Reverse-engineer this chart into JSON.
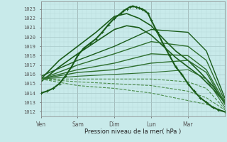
{
  "xlabel": "Pression niveau de la mer( hPa )",
  "bg_color": "#c8eaea",
  "grid_color_major": "#a8c8c8",
  "grid_color_minor": "#b8d8d8",
  "line_color_dark": "#1a5c1a",
  "line_color_light": "#2d6e2d",
  "line_color_faint": "#4a8c4a",
  "ylim": [
    1011.5,
    1023.8
  ],
  "yticks": [
    1012,
    1013,
    1014,
    1015,
    1016,
    1017,
    1018,
    1019,
    1020,
    1021,
    1022,
    1023
  ],
  "day_labels": [
    "Ven",
    "Sam",
    "Dim",
    "Lun",
    "Mar"
  ],
  "day_positions": [
    0,
    24,
    48,
    72,
    96
  ],
  "total_hours": 120,
  "lines": [
    {
      "x": [
        0,
        4,
        8,
        12,
        16,
        20,
        24,
        28,
        32,
        36,
        40,
        44,
        48,
        52,
        54,
        56,
        58,
        60,
        62,
        64,
        66,
        68,
        70,
        72,
        76,
        80,
        84,
        88,
        92,
        96,
        100,
        104,
        108,
        112,
        116,
        120
      ],
      "y": [
        1014.0,
        1014.2,
        1014.5,
        1015.0,
        1015.8,
        1016.8,
        1018.0,
        1018.8,
        1019.3,
        1019.8,
        1020.5,
        1021.3,
        1022.0,
        1022.5,
        1022.8,
        1023.0,
        1023.2,
        1023.3,
        1023.2,
        1023.1,
        1023.0,
        1022.8,
        1022.5,
        1021.8,
        1020.5,
        1019.2,
        1018.0,
        1016.8,
        1016.0,
        1015.0,
        1014.2,
        1013.5,
        1013.0,
        1012.5,
        1012.2,
        1012.0
      ],
      "lw": 1.5,
      "color": "dark",
      "marker": true
    },
    {
      "x": [
        0,
        12,
        24,
        36,
        48,
        56,
        64,
        72,
        80,
        88,
        96,
        104,
        112,
        120
      ],
      "y": [
        1015.5,
        1017.5,
        1019.0,
        1020.5,
        1022.2,
        1022.5,
        1022.0,
        1021.2,
        1019.8,
        1018.5,
        1017.5,
        1016.2,
        1014.8,
        1013.0
      ],
      "lw": 1.2,
      "color": "dark",
      "marker": false
    },
    {
      "x": [
        0,
        12,
        24,
        36,
        48,
        56,
        64,
        72,
        80,
        88,
        96,
        104,
        112,
        120
      ],
      "y": [
        1015.2,
        1016.8,
        1018.2,
        1019.5,
        1020.8,
        1021.2,
        1021.0,
        1020.2,
        1019.0,
        1017.8,
        1016.8,
        1015.8,
        1014.5,
        1013.0
      ],
      "lw": 1.2,
      "color": "dark",
      "marker": false
    },
    {
      "x": [
        0,
        24,
        48,
        72,
        96,
        108,
        120
      ],
      "y": [
        1015.8,
        1017.5,
        1019.0,
        1020.8,
        1020.5,
        1018.5,
        1013.5
      ],
      "lw": 1.0,
      "color": "dark",
      "marker": false
    },
    {
      "x": [
        0,
        24,
        48,
        72,
        96,
        108,
        120
      ],
      "y": [
        1015.5,
        1017.0,
        1018.2,
        1019.5,
        1019.0,
        1017.5,
        1013.2
      ],
      "lw": 1.0,
      "color": "light",
      "marker": false
    },
    {
      "x": [
        0,
        24,
        48,
        72,
        96,
        108,
        120
      ],
      "y": [
        1015.5,
        1016.5,
        1017.2,
        1018.2,
        1018.0,
        1016.5,
        1013.0
      ],
      "lw": 1.0,
      "color": "light",
      "marker": false
    },
    {
      "x": [
        0,
        24,
        48,
        72,
        96,
        108,
        120
      ],
      "y": [
        1015.5,
        1016.2,
        1016.5,
        1017.2,
        1017.5,
        1016.2,
        1012.8
      ],
      "lw": 1.0,
      "color": "light",
      "marker": false
    },
    {
      "x": [
        0,
        24,
        48,
        72,
        96,
        108,
        120
      ],
      "y": [
        1015.5,
        1015.8,
        1016.0,
        1016.2,
        1016.5,
        1015.5,
        1012.5
      ],
      "lw": 0.8,
      "color": "light",
      "marker": false
    },
    {
      "x": [
        0,
        24,
        48,
        72,
        96,
        108,
        120
      ],
      "y": [
        1015.5,
        1015.5,
        1015.5,
        1015.5,
        1015.2,
        1014.5,
        1012.3
      ],
      "lw": 0.8,
      "color": "faint",
      "marker": false,
      "dashed": true
    },
    {
      "x": [
        0,
        24,
        48,
        72,
        96,
        108,
        120
      ],
      "y": [
        1015.5,
        1015.2,
        1015.0,
        1014.8,
        1014.2,
        1013.5,
        1012.2
      ],
      "lw": 0.8,
      "color": "faint",
      "marker": false,
      "dashed": true
    },
    {
      "x": [
        0,
        24,
        48,
        72,
        96,
        108,
        120
      ],
      "y": [
        1015.5,
        1014.8,
        1014.5,
        1014.0,
        1013.2,
        1012.8,
        1012.0
      ],
      "lw": 0.8,
      "color": "faint",
      "marker": false,
      "dashed": true
    }
  ]
}
